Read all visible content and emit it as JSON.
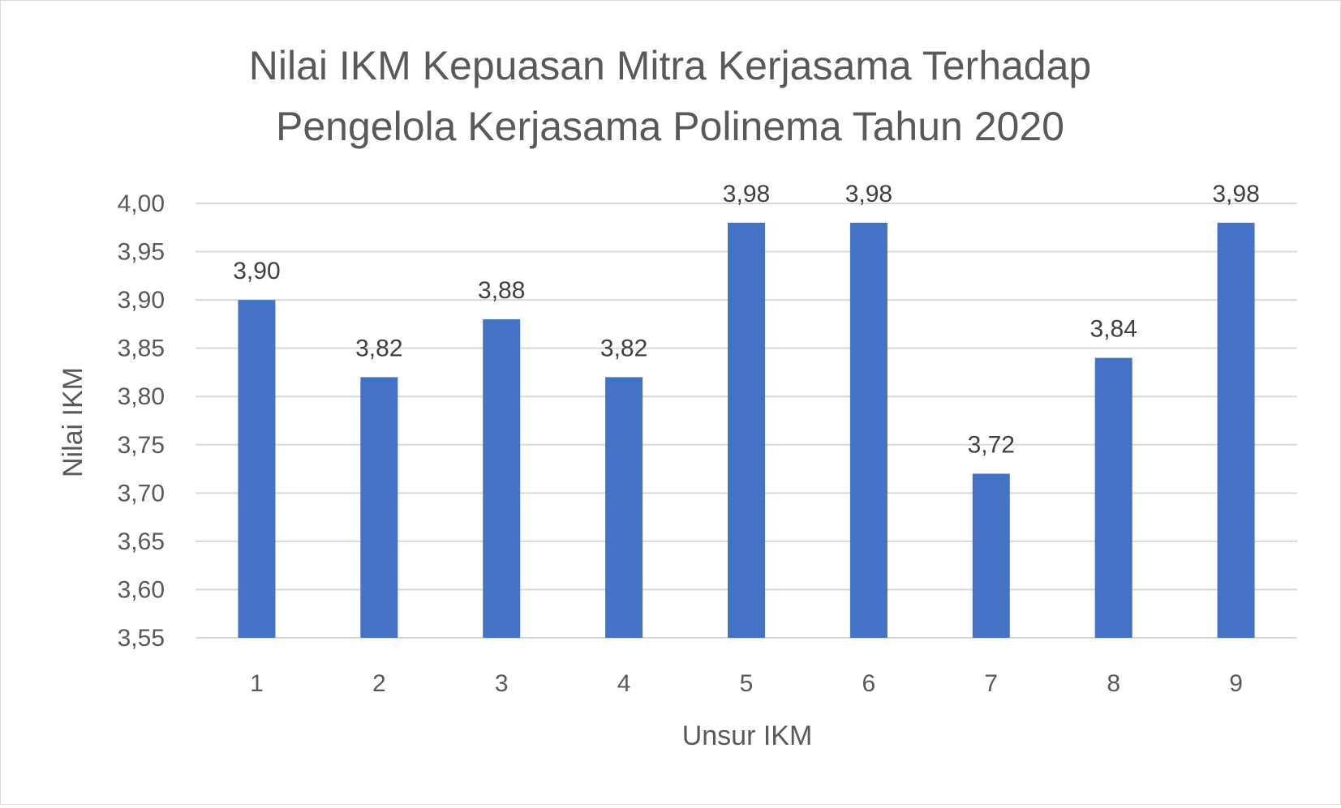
{
  "chart_data": {
    "type": "bar",
    "title_lines": [
      "Nilai IKM Kepuasan Mitra Kerjasama Terhadap",
      "Pengelola Kerjasama Polinema Tahun 2020"
    ],
    "xlabel": "Unsur IKM",
    "ylabel": "Nilai IKM",
    "categories": [
      "1",
      "2",
      "3",
      "4",
      "5",
      "6",
      "7",
      "8",
      "9"
    ],
    "values": [
      3.9,
      3.82,
      3.88,
      3.82,
      3.98,
      3.98,
      3.72,
      3.84,
      3.98
    ],
    "data_labels": [
      "3,90",
      "3,82",
      "3,88",
      "3,82",
      "3,98",
      "3,98",
      "3,72",
      "3,84",
      "3,98"
    ],
    "ylim": [
      3.55,
      4.0
    ],
    "yticks": [
      3.55,
      3.6,
      3.65,
      3.7,
      3.75,
      3.8,
      3.85,
      3.9,
      3.95,
      4.0
    ],
    "ytick_labels": [
      "3,55",
      "3,60",
      "3,65",
      "3,70",
      "3,75",
      "3,80",
      "3,85",
      "3,90",
      "3,95",
      "4,00"
    ],
    "grid": true,
    "legend": "none",
    "bar_color": "#4472c4"
  }
}
